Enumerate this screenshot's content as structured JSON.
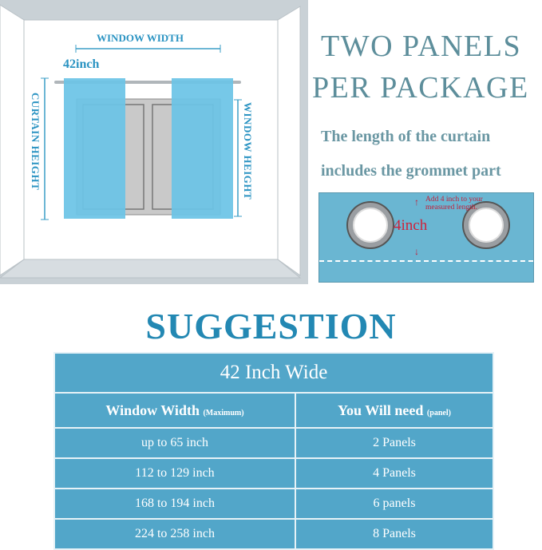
{
  "diagram": {
    "window_width_label": "WINDOW WIDTH",
    "curtain_width_label": "42inch",
    "curtain_height_label": "CURTAIN HEIGHT",
    "window_height_label": "WINDOW HEIGHT"
  },
  "headline": {
    "line1": "TWO PANELS",
    "line2": "PER PACKAGE",
    "note1": "The length of the curtain",
    "note2": "includes the grommet  part"
  },
  "grommet_detail": {
    "measure_label": "4inch",
    "instruction": "Add 4 inch to your measured length."
  },
  "suggestion": {
    "title": "SUGGESTION",
    "table_title": "42 Inch Wide",
    "headers": [
      {
        "label": "Window Width",
        "note": "(Maximum)"
      },
      {
        "label": "You Will need",
        "note": "(panel)"
      }
    ],
    "rows": [
      [
        "up to 65 inch",
        "2 Panels"
      ],
      [
        "112 to 129 inch",
        "4 Panels"
      ],
      [
        "168 to 194 inch",
        "6 panels"
      ],
      [
        "224 to 258 inch",
        "8 Panels"
      ]
    ]
  },
  "colors": {
    "accent": "#2388b3",
    "table_bg": "#52a6c9",
    "curtain": "#6cc4e6",
    "measure_text": "#d0213a"
  }
}
